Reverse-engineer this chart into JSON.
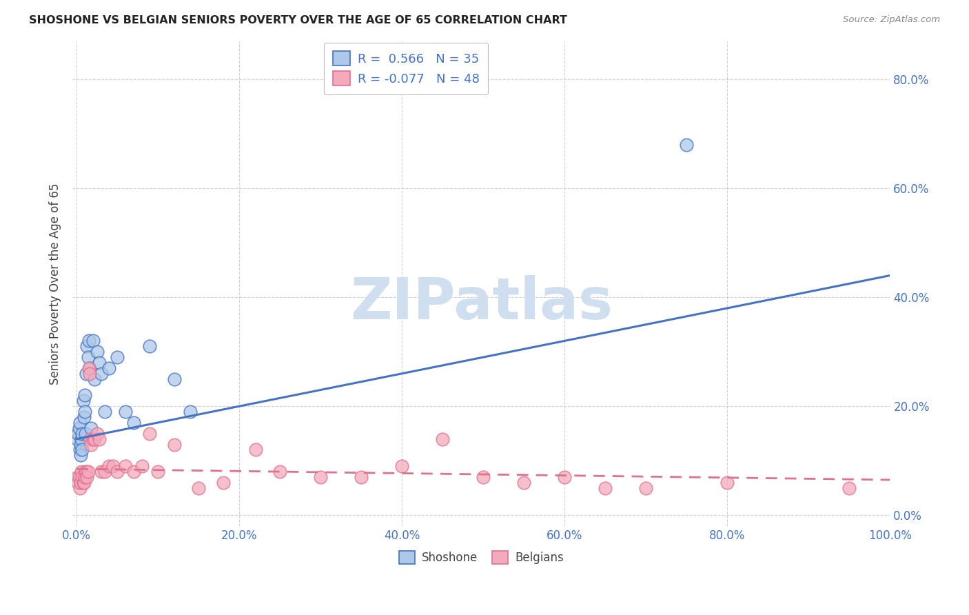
{
  "title": "SHOSHONE VS BELGIAN SENIORS POVERTY OVER THE AGE OF 65 CORRELATION CHART",
  "source": "Source: ZipAtlas.com",
  "ylabel": "Seniors Poverty Over the Age of 65",
  "r_shoshone": 0.566,
  "n_shoshone": 35,
  "r_belgians": -0.077,
  "n_belgians": 48,
  "shoshone_color": "#adc8e8",
  "belgians_color": "#f4aabb",
  "shoshone_line_color": "#4472c4",
  "belgians_line_color": "#e07090",
  "watermark_color": "#d0dff0",
  "background_color": "#ffffff",
  "grid_color": "#cccccc",
  "tick_color": "#4472c4",
  "shoshone_x": [
    0.001,
    0.002,
    0.003,
    0.004,
    0.004,
    0.005,
    0.005,
    0.006,
    0.007,
    0.007,
    0.008,
    0.009,
    0.01,
    0.01,
    0.011,
    0.012,
    0.013,
    0.014,
    0.015,
    0.016,
    0.018,
    0.02,
    0.022,
    0.025,
    0.028,
    0.03,
    0.035,
    0.04,
    0.05,
    0.06,
    0.07,
    0.09,
    0.12,
    0.14,
    0.75
  ],
  "shoshone_y": [
    0.14,
    0.15,
    0.16,
    0.12,
    0.17,
    0.13,
    0.11,
    0.14,
    0.12,
    0.15,
    0.21,
    0.18,
    0.22,
    0.19,
    0.15,
    0.26,
    0.31,
    0.29,
    0.32,
    0.27,
    0.16,
    0.32,
    0.25,
    0.3,
    0.28,
    0.26,
    0.19,
    0.27,
    0.29,
    0.19,
    0.17,
    0.31,
    0.25,
    0.19,
    0.68
  ],
  "belgians_x": [
    0.001,
    0.002,
    0.003,
    0.004,
    0.005,
    0.006,
    0.007,
    0.008,
    0.009,
    0.01,
    0.011,
    0.012,
    0.013,
    0.014,
    0.015,
    0.016,
    0.017,
    0.018,
    0.02,
    0.022,
    0.025,
    0.028,
    0.03,
    0.035,
    0.04,
    0.045,
    0.05,
    0.06,
    0.07,
    0.08,
    0.09,
    0.1,
    0.12,
    0.15,
    0.18,
    0.22,
    0.25,
    0.3,
    0.35,
    0.4,
    0.45,
    0.5,
    0.55,
    0.6,
    0.65,
    0.7,
    0.8,
    0.95
  ],
  "belgians_y": [
    0.07,
    0.06,
    0.07,
    0.05,
    0.06,
    0.08,
    0.07,
    0.06,
    0.06,
    0.07,
    0.08,
    0.08,
    0.07,
    0.08,
    0.27,
    0.26,
    0.14,
    0.13,
    0.14,
    0.14,
    0.15,
    0.14,
    0.08,
    0.08,
    0.09,
    0.09,
    0.08,
    0.09,
    0.08,
    0.09,
    0.15,
    0.08,
    0.13,
    0.05,
    0.06,
    0.12,
    0.08,
    0.07,
    0.07,
    0.09,
    0.14,
    0.07,
    0.06,
    0.07,
    0.05,
    0.05,
    0.06,
    0.05
  ],
  "xlim": [
    0.0,
    1.0
  ],
  "ylim": [
    0.0,
    0.87
  ],
  "xticks": [
    0.0,
    0.2,
    0.4,
    0.6,
    0.8,
    1.0
  ],
  "xtick_labels": [
    "0.0%",
    "20.0%",
    "40.0%",
    "60.0%",
    "80.0%",
    "100.0%"
  ],
  "yticks": [
    0.0,
    0.2,
    0.4,
    0.6,
    0.8
  ],
  "ytick_labels": [
    "0.0%",
    "20.0%",
    "40.0%",
    "60.0%",
    "80.0%"
  ],
  "shoshone_reg": [
    0.14,
    0.44
  ],
  "belgians_reg": [
    0.085,
    0.065
  ]
}
